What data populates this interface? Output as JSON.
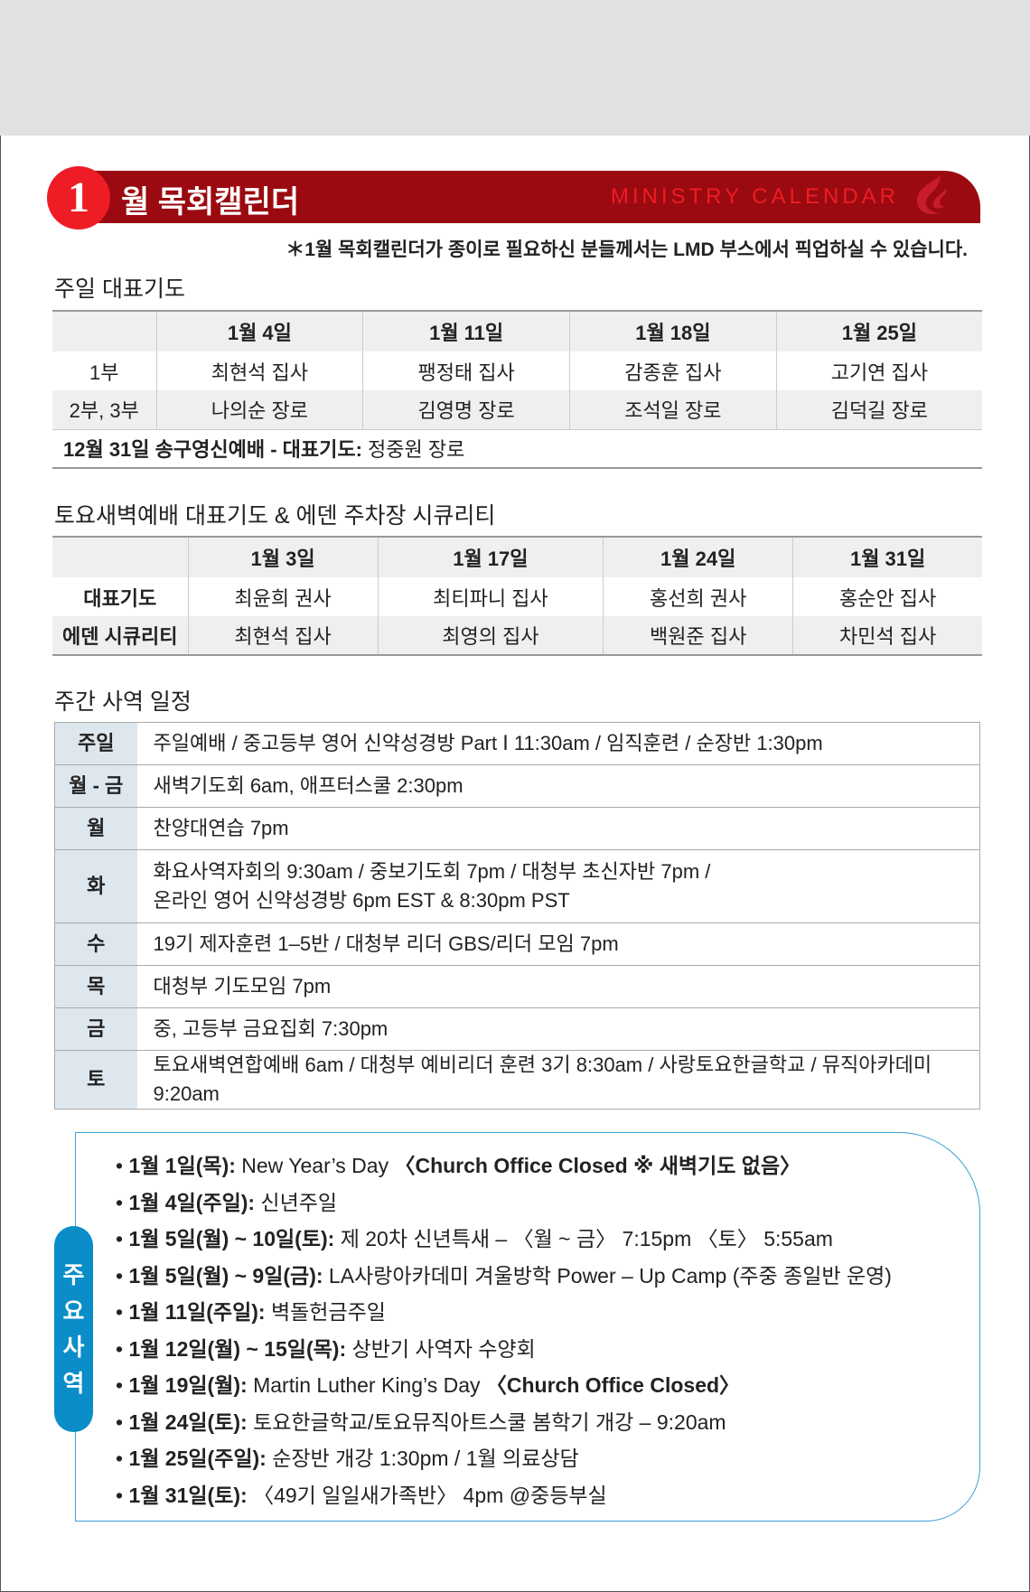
{
  "header": {
    "number": "1",
    "title": "월 목회캘린더",
    "english": "MINISTRY CALENDAR",
    "note": "＊1월 목회캘린더가 종이로 필요하신 분들께서는 LMD 부스에서 픽업하실 수 있습니다.",
    "colors": {
      "bar": "#9b0a10",
      "circle": "#ee1c25"
    }
  },
  "sunday": {
    "title": "주일 대표기도",
    "dates": [
      "1월 4일",
      "1월 11일",
      "1월 18일",
      "1월 25일"
    ],
    "rows": [
      {
        "label": "1부",
        "names": [
          "최현석 집사",
          "팽정태 집사",
          "감종훈 집사",
          "고기연 집사"
        ]
      },
      {
        "label": "2부, 3부",
        "names": [
          "나의순 장로",
          "김영명 장로",
          "조석일 장로",
          "김덕길 장로"
        ]
      }
    ],
    "footer_bold": "12월 31일 송구영신예배 - 대표기도:",
    "footer_name": " 정중원 장로"
  },
  "saturday": {
    "title": "토요새벽예배 대표기도 & 에덴 주차장 시큐리티",
    "dates": [
      "1월 3일",
      "1월 17일",
      "1월 24일",
      "1월 31일"
    ],
    "rows": [
      {
        "label": "대표기도",
        "names": [
          "최윤희 권사",
          "최티파니 집사",
          "홍선희 권사",
          "홍순안 집사"
        ]
      },
      {
        "label": "에덴 시큐리티",
        "names": [
          "최현석 집사",
          "최영의 집사",
          "백원준 집사",
          "차민석 집사"
        ]
      }
    ]
  },
  "weekly": {
    "title": "주간 사역 일정",
    "rows": [
      {
        "day": "주일",
        "text": "주일예배 / 중고등부 영어 신약성경방  Part Ⅰ  11:30am / 임직훈련 / 순장반 1:30pm"
      },
      {
        "day": "월 - 금",
        "text": "새벽기도회 6am, 애프터스쿨 2:30pm"
      },
      {
        "day": "월",
        "text": "찬양대연습 7pm"
      },
      {
        "day": "화",
        "text": "화요사역자회의 9:30am / 중보기도회 7pm / 대청부 초신자반 7pm /",
        "text2": "온라인 영어 신약성경방 6pm EST & 8:30pm PST"
      },
      {
        "day": "수",
        "text": "19기 제자훈련 1–5반 / 대청부 리더 GBS/리더 모임 7pm"
      },
      {
        "day": "목",
        "text": "대청부 기도모임 7pm"
      },
      {
        "day": "금",
        "text": "중, 고등부 금요집회 7:30pm"
      },
      {
        "day": "토",
        "text": "토요새벽연합예배 6am / 대청부 예비리더 훈련 3기 8:30am /  사랑토요한글학교 / 뮤직아카데미 9:20am"
      }
    ]
  },
  "events": {
    "label": "주요사역",
    "color": "#0a8dc8",
    "items": [
      {
        "date": "1월 1일(목):",
        "text": " New Year’s Day ",
        "bold2": "〈Church Office Closed ※ 새벽기도 없음〉"
      },
      {
        "date": "1월 4일(주일):",
        "text": " 신년주일"
      },
      {
        "date": "1월 5일(월) ~ 10일(토):",
        "text": " 제 20차 신년특새 – 〈월 ~ 금〉 7:15pm 〈토〉 5:55am"
      },
      {
        "date": "1월 5일(월) ~ 9일(금):",
        "text": " LA사랑아카데미 겨울방학 Power – Up Camp (주중 종일반 운영)"
      },
      {
        "date": "1월 11일(주일):",
        "text": " 벽돌헌금주일"
      },
      {
        "date": "1월 12일(월) ~ 15일(목):",
        "text": " 상반기 사역자 수양회"
      },
      {
        "date": "1월 19일(월):",
        "text": " Martin Luther King’s Day ",
        "bold2": "〈Church Office Closed〉"
      },
      {
        "date": "1월 24일(토):",
        "text": " 토요한글학교/토요뮤직아트스쿨 봄학기 개강 – 9:20am"
      },
      {
        "date": "1월 25일(주일):",
        "text": " 순장반 개강 1:30pm / 1월 의료상담"
      },
      {
        "date": "1월 31일(토):",
        "text": " 〈49기 일일새가족반〉 4pm @중등부실"
      }
    ]
  }
}
